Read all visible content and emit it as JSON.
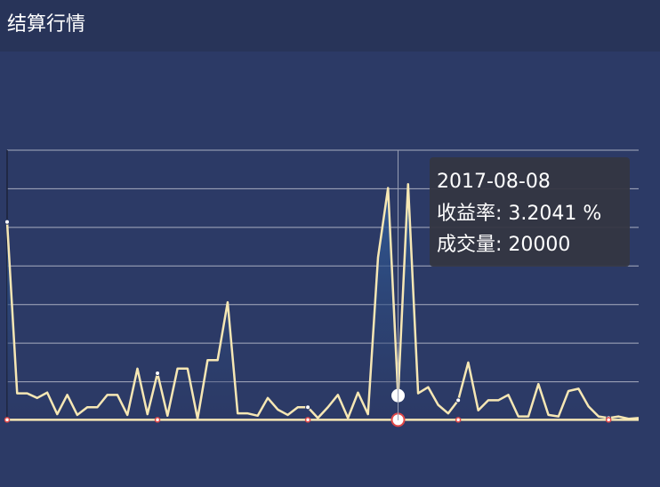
{
  "header": {
    "title": "结算行情"
  },
  "chart_data": {
    "type": "line",
    "categories": [
      null,
      null,
      null,
      null,
      null,
      null,
      null,
      null,
      null,
      null,
      null,
      null,
      null,
      null,
      null,
      null,
      null,
      null,
      null,
      null,
      null,
      null,
      null,
      null,
      null,
      null,
      null,
      null,
      null,
      null,
      null,
      null,
      null,
      null,
      null,
      null,
      null,
      null,
      null,
      "2017-08-08",
      null,
      null,
      null,
      null,
      null,
      null,
      null,
      null,
      null,
      null,
      null,
      null,
      null,
      null,
      null,
      null,
      null,
      null,
      null,
      null,
      null,
      null,
      null,
      null
    ],
    "series": [
      {
        "name": "收益率",
        "color": "#f6e7b4",
        "values": [
          25.7,
          3.5,
          3.5,
          2.9,
          3.6,
          0.8,
          3.3,
          0.7,
          1.7,
          1.7,
          3.3,
          3.3,
          0.7,
          6.7,
          0.8,
          6.1,
          0.6,
          6.7,
          6.7,
          0.2,
          7.8,
          7.8,
          15.3,
          0.9,
          0.9,
          0.6,
          2.9,
          1.4,
          0.7,
          1.7,
          1.7,
          0.3,
          1.7,
          3.3,
          0.3,
          3.6,
          0.8,
          21.1,
          30.1,
          3.2041,
          30.6,
          3.5,
          4.3,
          2.0,
          0.9,
          2.6,
          7.5,
          1.3,
          2.6,
          2.6,
          3.3,
          0.5,
          0.5,
          4.7,
          0.7,
          0.5,
          3.8,
          4.1,
          1.8,
          0.5,
          0.3,
          0.5,
          0.2,
          0.3
        ]
      },
      {
        "name": "成交量",
        "color": "#f6e7b4",
        "axis": "y2",
        "values": [
          20000,
          20000,
          20000,
          20000,
          20000,
          20000,
          20000,
          20000,
          20000,
          20000,
          20000,
          20000,
          20000,
          20000,
          20000,
          20000,
          20000,
          20000,
          20000,
          20000,
          20000,
          20000,
          20000,
          20000,
          20000,
          20000,
          20000,
          20000,
          20000,
          20000,
          20000,
          20000,
          20000,
          20000,
          20000,
          20000,
          20000,
          20000,
          20000,
          20000,
          20000,
          20000,
          20000,
          20000,
          20000,
          20000,
          20000,
          20000,
          20000,
          20000,
          20000,
          20000,
          20000,
          20000,
          20000,
          20000,
          20000,
          20000,
          20000,
          20000,
          20000,
          20000,
          20000,
          20000
        ]
      }
    ],
    "ylim": [
      0,
      35
    ],
    "yticks": [
      0,
      5,
      10,
      15,
      20,
      25,
      30,
      35
    ],
    "y2lim": [
      0,
      10000000
    ],
    "grid": true,
    "tooltip": [
      "收益率: 3.2041 %",
      "成交量: 20000"
    ]
  }
}
